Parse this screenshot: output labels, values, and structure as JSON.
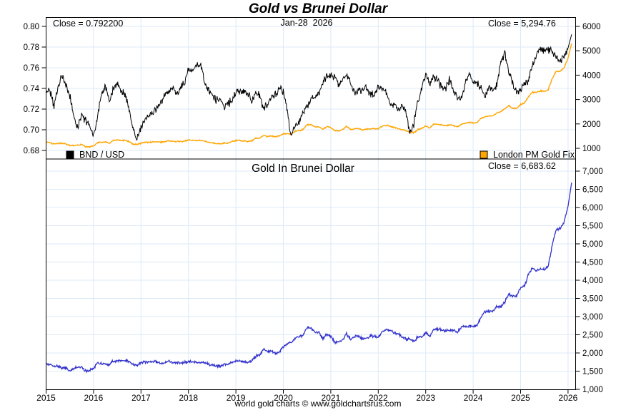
{
  "title": "Gold vs Brunei Dollar",
  "footer": "world gold charts © www.goldchartsrus.com",
  "colors": {
    "title_blue": "#0000DD",
    "bnd_line": "#000000",
    "gold_line": "#FFA500",
    "gold_bnd_line": "#3333CC",
    "grid": "#DCEAF7",
    "frame": "#000000"
  },
  "top_panel": {
    "close_left": "Close = 0.792200",
    "date_label": "Jan-28  2026",
    "close_right": "Close = 5,294.76",
    "legend_left": "BND / USD",
    "legend_right": "London PM Gold Fix",
    "left_axis_ticks": [
      "0.80",
      "0.78",
      "0.76",
      "0.74",
      "0.72",
      "0.70",
      "0.68"
    ],
    "right_axis_ticks": [
      "6000",
      "5000",
      "4000",
      "3000",
      "2000",
      "1000"
    ]
  },
  "bottom_panel": {
    "title": "Gold In Brunei Dollar",
    "close_label": "Close = 6,683.62",
    "right_axis_ticks": [
      "7,000",
      "6,500",
      "6,000",
      "5,500",
      "5,000",
      "4,500",
      "4,000",
      "3,500",
      "3,000",
      "2,500",
      "2,000",
      "1,500",
      "1,000"
    ]
  },
  "x_axis_ticks": [
    "2015",
    "2016",
    "2017",
    "2018",
    "2019",
    "2020",
    "2021",
    "2022",
    "2023",
    "2024",
    "2025",
    "2026"
  ],
  "chart_data": [
    {
      "type": "line",
      "panel": "top",
      "x_start": 2015.0,
      "x_step_months": 1,
      "x_close": 2026.075,
      "x_range_drawn": [
        2015.0,
        2026.17
      ],
      "grid": true,
      "left_axis": {
        "label_values": [
          0.8,
          0.78,
          0.76,
          0.74,
          0.72,
          0.7,
          0.68
        ],
        "ylim": [
          0.672,
          0.808
        ]
      },
      "right_axis": {
        "label_values": [
          6000,
          5000,
          4000,
          3000,
          2000,
          1000
        ],
        "ylim": [
          560,
          6350
        ]
      },
      "series": [
        {
          "name": "BND / USD",
          "axis": "left",
          "color": "#000000",
          "close": 0.7922,
          "values": [
            0.737,
            0.737,
            0.723,
            0.74,
            0.754,
            0.743,
            0.733,
            0.713,
            0.701,
            0.715,
            0.708,
            0.705,
            0.694,
            0.712,
            0.734,
            0.742,
            0.726,
            0.741,
            0.744,
            0.737,
            0.734,
            0.719,
            0.701,
            0.691,
            0.702,
            0.709,
            0.715,
            0.716,
            0.722,
            0.725,
            0.733,
            0.736,
            0.741,
            0.734,
            0.74,
            0.746,
            0.758,
            0.757,
            0.762,
            0.764,
            0.747,
            0.738,
            0.733,
            0.729,
            0.729,
            0.722,
            0.725,
            0.729,
            0.737,
            0.739,
            0.738,
            0.735,
            0.727,
            0.737,
            0.733,
            0.721,
            0.724,
            0.733,
            0.734,
            0.741,
            0.737,
            0.717,
            0.693,
            0.705,
            0.706,
            0.717,
            0.723,
            0.731,
            0.732,
            0.735,
            0.744,
            0.753,
            0.753,
            0.752,
            0.744,
            0.749,
            0.753,
            0.745,
            0.736,
            0.738,
            0.737,
            0.742,
            0.734,
            0.733,
            0.741,
            0.74,
            0.737,
            0.724,
            0.725,
            0.719,
            0.722,
            0.717,
            0.697,
            0.706,
            0.727,
            0.741,
            0.755,
            0.744,
            0.751,
            0.749,
            0.74,
            0.739,
            0.749,
            0.737,
            0.731,
            0.73,
            0.744,
            0.755,
            0.745,
            0.744,
            0.742,
            0.734,
            0.74,
            0.738,
            0.744,
            0.765,
            0.774,
            0.757,
            0.745,
            0.736,
            0.738,
            0.745,
            0.748,
            0.762,
            0.772,
            0.778,
            0.777,
            0.778,
            0.775,
            0.77,
            0.766,
            0.77,
            0.779
          ]
        },
        {
          "name": "London PM Gold Fix",
          "axis": "right",
          "color": "#FFA500",
          "close": 5294.76,
          "values": [
            1260,
            1230,
            1180,
            1200,
            1200,
            1180,
            1100,
            1120,
            1125,
            1150,
            1070,
            1065,
            1100,
            1230,
            1245,
            1260,
            1215,
            1320,
            1340,
            1320,
            1325,
            1270,
            1175,
            1150,
            1210,
            1250,
            1245,
            1265,
            1270,
            1245,
            1270,
            1310,
            1285,
            1275,
            1280,
            1300,
            1345,
            1320,
            1325,
            1315,
            1300,
            1250,
            1220,
            1200,
            1190,
            1215,
            1220,
            1280,
            1320,
            1315,
            1295,
            1280,
            1305,
            1410,
            1420,
            1525,
            1470,
            1510,
            1460,
            1515,
            1585,
            1610,
            1580,
            1700,
            1730,
            1770,
            1960,
            1970,
            1885,
            1880,
            1775,
            1895,
            1850,
            1730,
            1715,
            1770,
            1905,
            1770,
            1815,
            1815,
            1755,
            1785,
            1805,
            1805,
            1795,
            1910,
            1940,
            1910,
            1855,
            1810,
            1765,
            1715,
            1660,
            1640,
            1770,
            1815,
            1930,
            1825,
            1980,
            1990,
            1960,
            1920,
            1965,
            1940,
            1870,
            1985,
            2035,
            2065,
            2040,
            2045,
            2230,
            2290,
            2330,
            2330,
            2445,
            2500,
            2630,
            2745,
            2650,
            2625,
            2800,
            2860,
            3120,
            3300,
            3290,
            3350,
            3340,
            3410,
            3860,
            4150,
            4150,
            4300,
            4700
          ]
        }
      ]
    },
    {
      "type": "line",
      "panel": "bottom",
      "x_start": 2015.0,
      "x_step_months": 1,
      "x_close": 2026.075,
      "x_range_drawn": [
        2015.0,
        2026.17
      ],
      "grid": true,
      "right_axis": {
        "label_values": [
          7000,
          6500,
          6000,
          5500,
          5000,
          4500,
          4000,
          3500,
          3000,
          2500,
          2000,
          1500,
          1000
        ],
        "ylim": [
          1000,
          7333
        ]
      },
      "series": [
        {
          "name": "Gold In Brunei Dollar",
          "axis": "right",
          "color": "#3333CC",
          "close": 6683.62,
          "values": [
            1710,
            1669,
            1632,
            1622,
            1592,
            1588,
            1501,
            1571,
            1605,
            1608,
            1511,
            1511,
            1585,
            1728,
            1696,
            1698,
            1674,
            1781,
            1801,
            1791,
            1805,
            1766,
            1676,
            1664,
            1724,
            1763,
            1741,
            1767,
            1759,
            1717,
            1733,
            1780,
            1734,
            1737,
            1730,
            1743,
            1774,
            1744,
            1739,
            1721,
            1740,
            1694,
            1665,
            1646,
            1632,
            1683,
            1683,
            1756,
            1791,
            1779,
            1755,
            1741,
            1795,
            1913,
            1937,
            2115,
            2030,
            2060,
            1989,
            2045,
            2151,
            2246,
            2280,
            2411,
            2450,
            2469,
            2711,
            2695,
            2575,
            2558,
            2386,
            2516,
            2457,
            2301,
            2305,
            2363,
            2530,
            2376,
            2466,
            2459,
            2381,
            2406,
            2459,
            2463,
            2422,
            2581,
            2632,
            2638,
            2559,
            2517,
            2445,
            2392,
            2382,
            2323,
            2435,
            2449,
            2556,
            2453,
            2636,
            2657,
            2649,
            2598,
            2623,
            2632,
            2558,
            2719,
            2735,
            2735,
            2738,
            2749,
            3005,
            3120,
            3149,
            3157,
            3286,
            3268,
            3398,
            3627,
            3557,
            3567,
            3794,
            3839,
            4171,
            4331,
            4262,
            4306,
            4299,
            4383,
            4981,
            5390,
            5418,
            5584,
            6033
          ]
        }
      ]
    }
  ]
}
